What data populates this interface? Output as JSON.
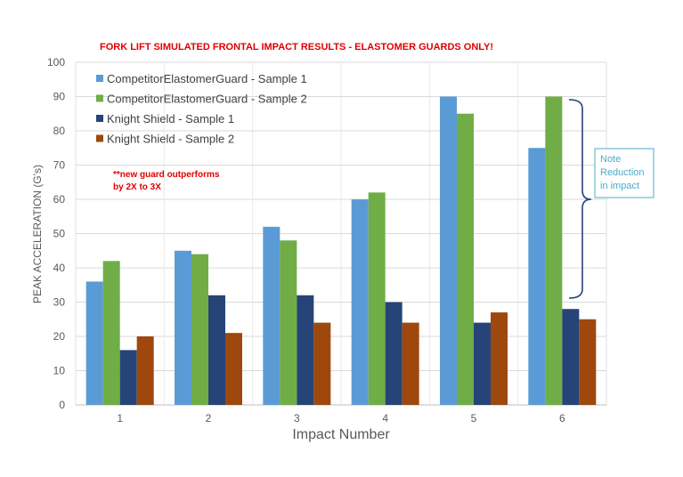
{
  "chart_data": {
    "type": "bar",
    "title": "FORK LIFT SIMULATED FRONTAL IMPACT RESULTS - ELASTOMER GUARDS ONLY!",
    "xlabel": "Impact Number",
    "ylabel": "PEAK ACCELERATION (G's)",
    "ylim": [
      0,
      100
    ],
    "yticks": [
      0,
      10,
      20,
      30,
      40,
      50,
      60,
      70,
      80,
      90,
      100
    ],
    "categories": [
      "1",
      "2",
      "3",
      "4",
      "5",
      "6"
    ],
    "grid": true,
    "legend_position": "top-left",
    "series": [
      {
        "name": "CompetitorElastomerGuard - Sample 1",
        "color": "#5B9BD5",
        "values": [
          36,
          45,
          52,
          60,
          90,
          75
        ]
      },
      {
        "name": "CompetitorElastomerGuard - Sample 2",
        "color": "#70AD47",
        "values": [
          42,
          44,
          48,
          62,
          85,
          90
        ]
      },
      {
        "name": "Knight Shield - Sample 1",
        "color": "#264478",
        "values": [
          16,
          32,
          32,
          30,
          24,
          28
        ]
      },
      {
        "name": "Knight Shield - Sample 2",
        "color": "#9E480E",
        "values": [
          20,
          21,
          24,
          24,
          27,
          25
        ]
      }
    ],
    "annotations": [
      {
        "text": "**new guard outperforms by 2X to 3X",
        "lines": [
          "**new guard outperforms",
          "by 2X to 3X"
        ],
        "color": "#E00000"
      },
      {
        "text": "Note Reduction in impact",
        "lines": [
          "Note",
          "Reduction",
          "in impact"
        ],
        "color": "#4BACC6"
      }
    ],
    "colors": {
      "title": "#E00000",
      "grid": "#D9D9D9",
      "axis_text": "#595959"
    }
  }
}
